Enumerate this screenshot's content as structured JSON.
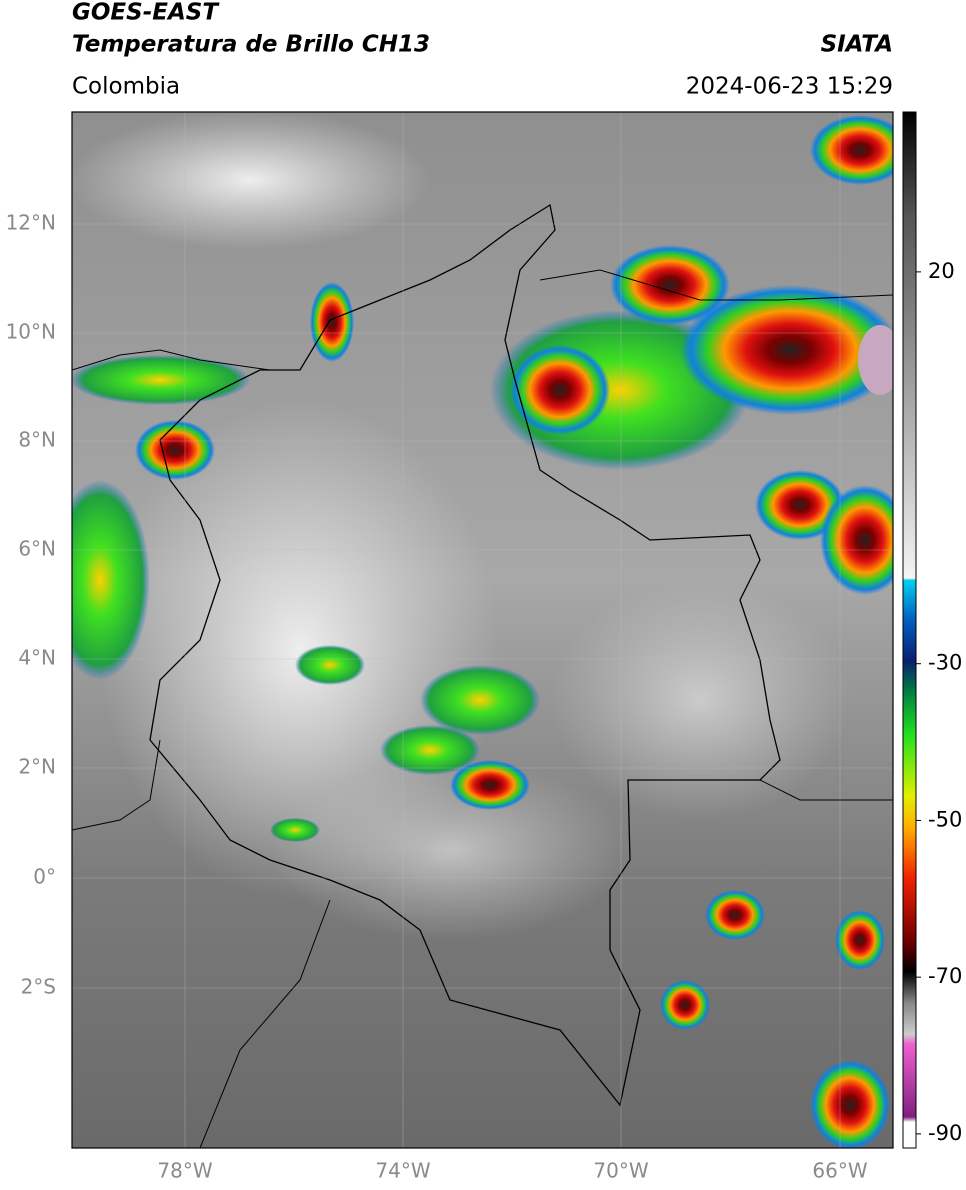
{
  "header": {
    "title_line1": "GOES-EAST",
    "title_line2": "Temperatura de Brillo CH13",
    "agency": "SIATA",
    "region": "Colombia",
    "timestamp": "2024-06-23 15:29"
  },
  "map": {
    "lat_labels": [
      "12°N",
      "10°N",
      "8°N",
      "6°N",
      "4°N",
      "2°N",
      "0°",
      "2°S"
    ],
    "lon_labels": [
      "78°W",
      "74°W",
      "70°W",
      "66°W"
    ]
  },
  "colorbar": {
    "lim": [
      40.4,
      -91.8
    ],
    "ticks": [
      20,
      -30,
      -50,
      -70,
      -90
    ]
  }
}
